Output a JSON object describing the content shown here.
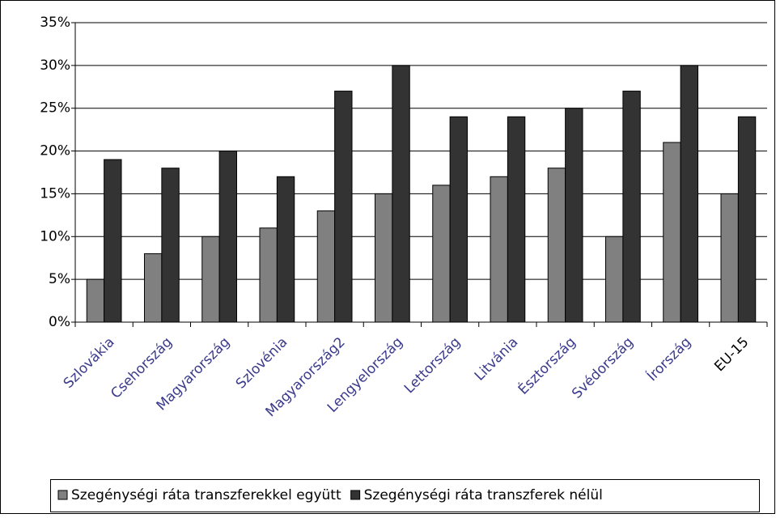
{
  "chart_data": {
    "type": "bar",
    "categories": [
      "Szlovákia",
      "Csehország",
      "Magyarország",
      "Szlovénia",
      "Magyarország2",
      "Lengyelország",
      "Lettország",
      "Litvánia",
      "Észtország",
      "Svédország",
      "Írország",
      "EU-15"
    ],
    "series": [
      {
        "name": "Szegénységi ráta transzferekkel együtt",
        "color": "#808080",
        "values": [
          5,
          8,
          10,
          11,
          13,
          15,
          16,
          17,
          18,
          10,
          21,
          15
        ]
      },
      {
        "name": "Szegénységi ráta transzferek nélül",
        "color": "#333333",
        "values": [
          19,
          18,
          20,
          17,
          27,
          30,
          24,
          24,
          25,
          27,
          30,
          24
        ]
      }
    ],
    "ylim": [
      0,
      35
    ],
    "yticks": [
      {
        "value": 0,
        "label": "0%"
      },
      {
        "value": 5,
        "label": "5%"
      },
      {
        "value": 10,
        "label": "10%"
      },
      {
        "value": 15,
        "label": "15%"
      },
      {
        "value": 20,
        "label": "20%"
      },
      {
        "value": 25,
        "label": "25%"
      },
      {
        "value": 30,
        "label": "30%"
      },
      {
        "value": 35,
        "label": "35%"
      }
    ],
    "grid": true,
    "legend": "bottom"
  }
}
